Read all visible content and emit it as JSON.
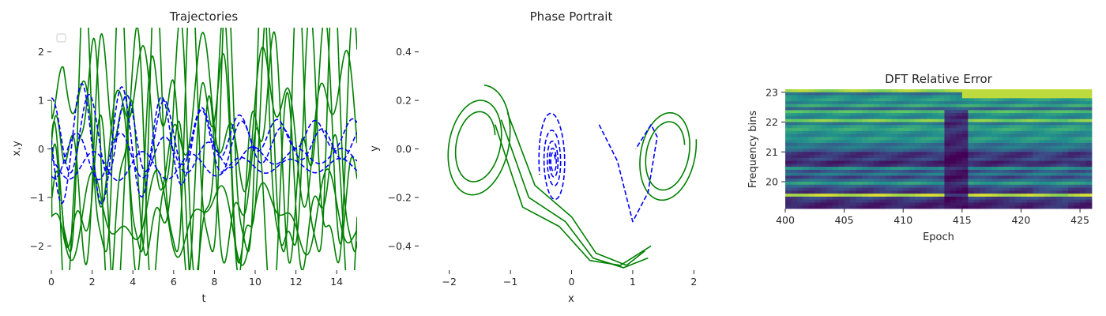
{
  "colors": {
    "solid": "#008000",
    "dashed": "#0000ff",
    "legend_box": "#cccccc"
  },
  "chart_data": [
    {
      "type": "line",
      "title": "Trajectories",
      "xlabel": "t",
      "ylabel": "x,y",
      "xlim": [
        0,
        15
      ],
      "ylim": [
        -2.5,
        2.5
      ],
      "xticks": [
        0,
        2,
        4,
        6,
        8,
        10,
        12,
        14
      ],
      "yticks": [
        -2,
        -1,
        0,
        1,
        2
      ],
      "xtick_labels": [
        "0",
        "2",
        "4",
        "6",
        "8",
        "10",
        "12",
        "14"
      ],
      "ytick_labels": [
        "−2",
        "−1",
        "0",
        "1",
        "2"
      ],
      "legend": "upper-left (empty)",
      "grid": false,
      "series_style": [
        {
          "color": "#008000",
          "dash": "solid",
          "count": 6
        },
        {
          "color": "#0000ff",
          "dash": "dashed",
          "count": 4
        }
      ],
      "series_solid": [
        {
          "t0": 1.0,
          "amp": 1.0,
          "freq": 1.9,
          "phase": 0.0,
          "a2": 0.8,
          "f2": 4.4,
          "p2": 0.3,
          "off": 0.6
        },
        {
          "t0": 0.0,
          "amp": 1.6,
          "freq": 2.4,
          "phase": 1.2,
          "a2": 1.2,
          "f2": 5.1,
          "p2": 2.0,
          "off": 0.1
        },
        {
          "t0": 0.0,
          "amp": 2.3,
          "freq": 2.9,
          "phase": 2.4,
          "a2": 0.9,
          "f2": 6.0,
          "p2": 0.9,
          "off": -0.3
        },
        {
          "t0": 0.0,
          "amp": 1.3,
          "freq": 3.3,
          "phase": 0.7,
          "a2": 1.1,
          "f2": 4.9,
          "p2": 1.7,
          "off": -1.1
        },
        {
          "t0": 0.0,
          "amp": 0.6,
          "freq": 2.2,
          "phase": 3.0,
          "a2": 0.4,
          "f2": 3.8,
          "p2": 0.5,
          "off": -1.4
        },
        {
          "t0": 0.0,
          "amp": 2.8,
          "freq": 3.6,
          "phase": 1.9,
          "a2": 0.7,
          "f2": 7.2,
          "p2": 2.6,
          "off": 0.2
        }
      ],
      "series_dashed": [
        {
          "amp": 0.75,
          "freq": 3.4,
          "phase": 0.0,
          "decay": 0.05,
          "off": 0.3
        },
        {
          "amp": 1.2,
          "freq": 3.2,
          "phase": 1.5,
          "decay": 0.08,
          "off": 0.1
        },
        {
          "amp": 0.45,
          "freq": 2.9,
          "phase": 2.7,
          "decay": 0.06,
          "off": -0.15
        },
        {
          "amp": 0.25,
          "freq": 2.6,
          "phase": 0.9,
          "decay": 0.02,
          "off": -0.35
        }
      ]
    },
    {
      "type": "line",
      "title": "Phase Portrait",
      "xlabel": "x",
      "ylabel": "y",
      "xlim": [
        -2.5,
        2.5
      ],
      "ylim": [
        -0.5,
        0.5
      ],
      "xticks": [
        -2,
        -1,
        0,
        1,
        2
      ],
      "yticks": [
        -0.4,
        -0.2,
        0.0,
        0.2,
        0.4
      ],
      "xtick_labels": [
        "−2",
        "−1",
        "0",
        "1",
        "2"
      ],
      "ytick_labels": [
        "−0.4",
        "−0.2",
        "0.0",
        "0.2",
        "0.4"
      ],
      "grid": false,
      "spirals_solid": [
        {
          "cx": -1.55,
          "cy": 0.02,
          "rx0": 0.35,
          "ry0": 0.12,
          "grow": 1.35,
          "turns": 2.2,
          "tilt": 0.55
        },
        {
          "cx": 1.55,
          "cy": -0.02,
          "rx0": 0.35,
          "ry0": 0.12,
          "grow": 1.28,
          "turns": 2.0,
          "tilt": 0.55
        }
      ],
      "bridges_solid": [
        {
          "x": [
            -1.05,
            -0.6,
            0.0,
            0.4,
            0.9,
            1.2
          ],
          "y": [
            0.15,
            -0.15,
            -0.28,
            -0.43,
            -0.48,
            -0.42
          ]
        },
        {
          "x": [
            -1.15,
            -0.7,
            -0.1,
            0.35,
            0.85,
            1.25
          ],
          "y": [
            0.12,
            -0.2,
            -0.3,
            -0.45,
            -0.49,
            -0.45
          ]
        },
        {
          "x": [
            -1.25,
            -0.8,
            -0.2,
            0.3,
            0.8,
            1.3
          ],
          "y": [
            0.1,
            -0.24,
            -0.32,
            -0.46,
            -0.48,
            -0.4
          ]
        }
      ],
      "spiral_dashed": {
        "cx": -0.3,
        "cy": -0.05,
        "rx0": 0.05,
        "ry0": 0.03,
        "grow": 1.55,
        "turns": 4.5,
        "tilt": 0.9
      },
      "dashed_tail": {
        "x": [
          0.45,
          0.75,
          1.0,
          1.25,
          1.4,
          1.3,
          1.05
        ],
        "y": [
          0.1,
          -0.05,
          -0.3,
          -0.18,
          0.05,
          0.1,
          0.0
        ]
      }
    },
    {
      "type": "heatmap",
      "title": "DFT Relative Error",
      "xlabel": "Epoch",
      "ylabel": "Frequency bins",
      "xlim": [
        400,
        426
      ],
      "ylim": [
        19.1,
        23.1
      ],
      "xticks": [
        400,
        405,
        410,
        415,
        420,
        425
      ],
      "yticks": [
        20,
        21,
        22,
        23
      ],
      "xtick_labels": [
        "400",
        "405",
        "410",
        "415",
        "420",
        "425"
      ],
      "ytick_labels": [
        "20",
        "21",
        "22",
        "23"
      ],
      "colormap": "viridis",
      "rows": 40,
      "cols": 52,
      "row_levels": [
        0.85,
        0.35,
        0.5,
        0.55,
        0.45,
        0.6,
        0.3,
        0.7,
        0.5,
        0.45,
        0.8,
        0.4,
        0.55,
        0.6,
        0.5,
        0.45,
        0.55,
        0.5,
        0.35,
        0.4,
        0.3,
        0.15,
        0.15,
        0.2,
        0.1,
        0.15,
        0.5,
        0.25,
        0.4,
        0.2,
        0.35,
        0.55,
        0.3,
        0.2,
        0.15,
        0.9,
        0.2,
        0.15,
        0.1,
        0.1
      ],
      "dark_band_epoch": [
        414,
        415
      ]
    }
  ]
}
